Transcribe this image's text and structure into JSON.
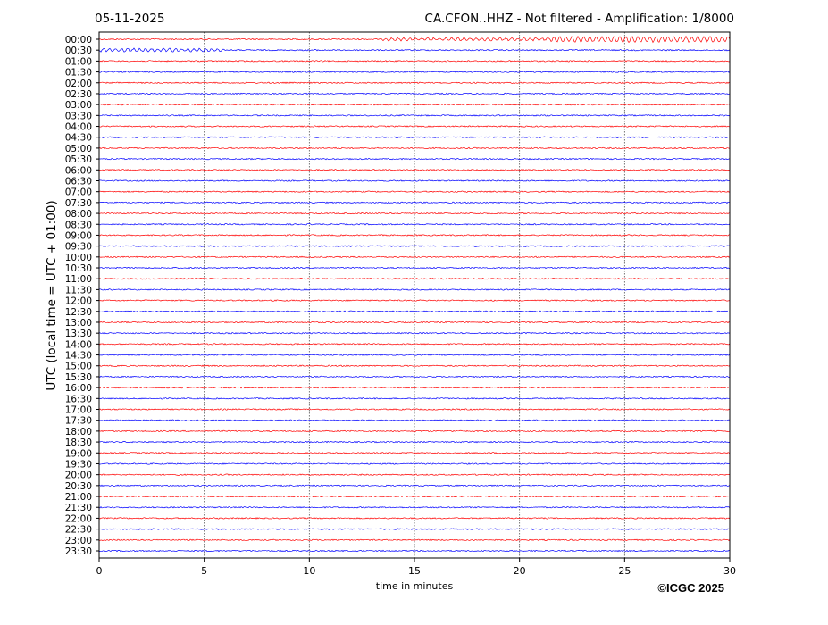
{
  "header": {
    "date": "05-11-2025",
    "title": "CA.CFON..HHZ - Not filtered - Amplification: 1/8000"
  },
  "footer": {
    "copyright": "©ICGC 2025"
  },
  "chart_data": {
    "type": "line",
    "subtype": "helicorder",
    "xlabel": "time in minutes",
    "ylabel": "UTC (local time = UTC + 01:00)",
    "xlim": [
      0,
      30
    ],
    "x_ticks": [
      "0",
      "5",
      "10",
      "15",
      "20",
      "25",
      "30"
    ],
    "grid": "vertical dotted at every 5 minutes",
    "row_colors": [
      "#ff0000",
      "#0000ff"
    ],
    "row_labels": [
      "00:00",
      "00:30",
      "01:00",
      "01:30",
      "02:00",
      "02:30",
      "03:00",
      "03:30",
      "04:00",
      "04:30",
      "05:00",
      "05:30",
      "06:00",
      "06:30",
      "07:00",
      "07:30",
      "08:00",
      "08:30",
      "09:00",
      "09:30",
      "10:00",
      "10:30",
      "11:00",
      "11:30",
      "12:00",
      "12:30",
      "13:00",
      "13:30",
      "14:00",
      "14:30",
      "15:00",
      "15:30",
      "16:00",
      "16:30",
      "17:00",
      "17:30",
      "18:00",
      "18:30",
      "19:00",
      "19:30",
      "20:00",
      "20:30",
      "21:00",
      "21:30",
      "22:00",
      "22:30",
      "23:00",
      "23:30"
    ],
    "events": [
      {
        "row": "00:00",
        "start_min": 13.5,
        "end_min": 30,
        "note": "larger oscillations, strongest ~22–26 min"
      },
      {
        "row": "00:30",
        "start_min": 0,
        "end_min": 6,
        "note": "small oscillations"
      }
    ]
  }
}
